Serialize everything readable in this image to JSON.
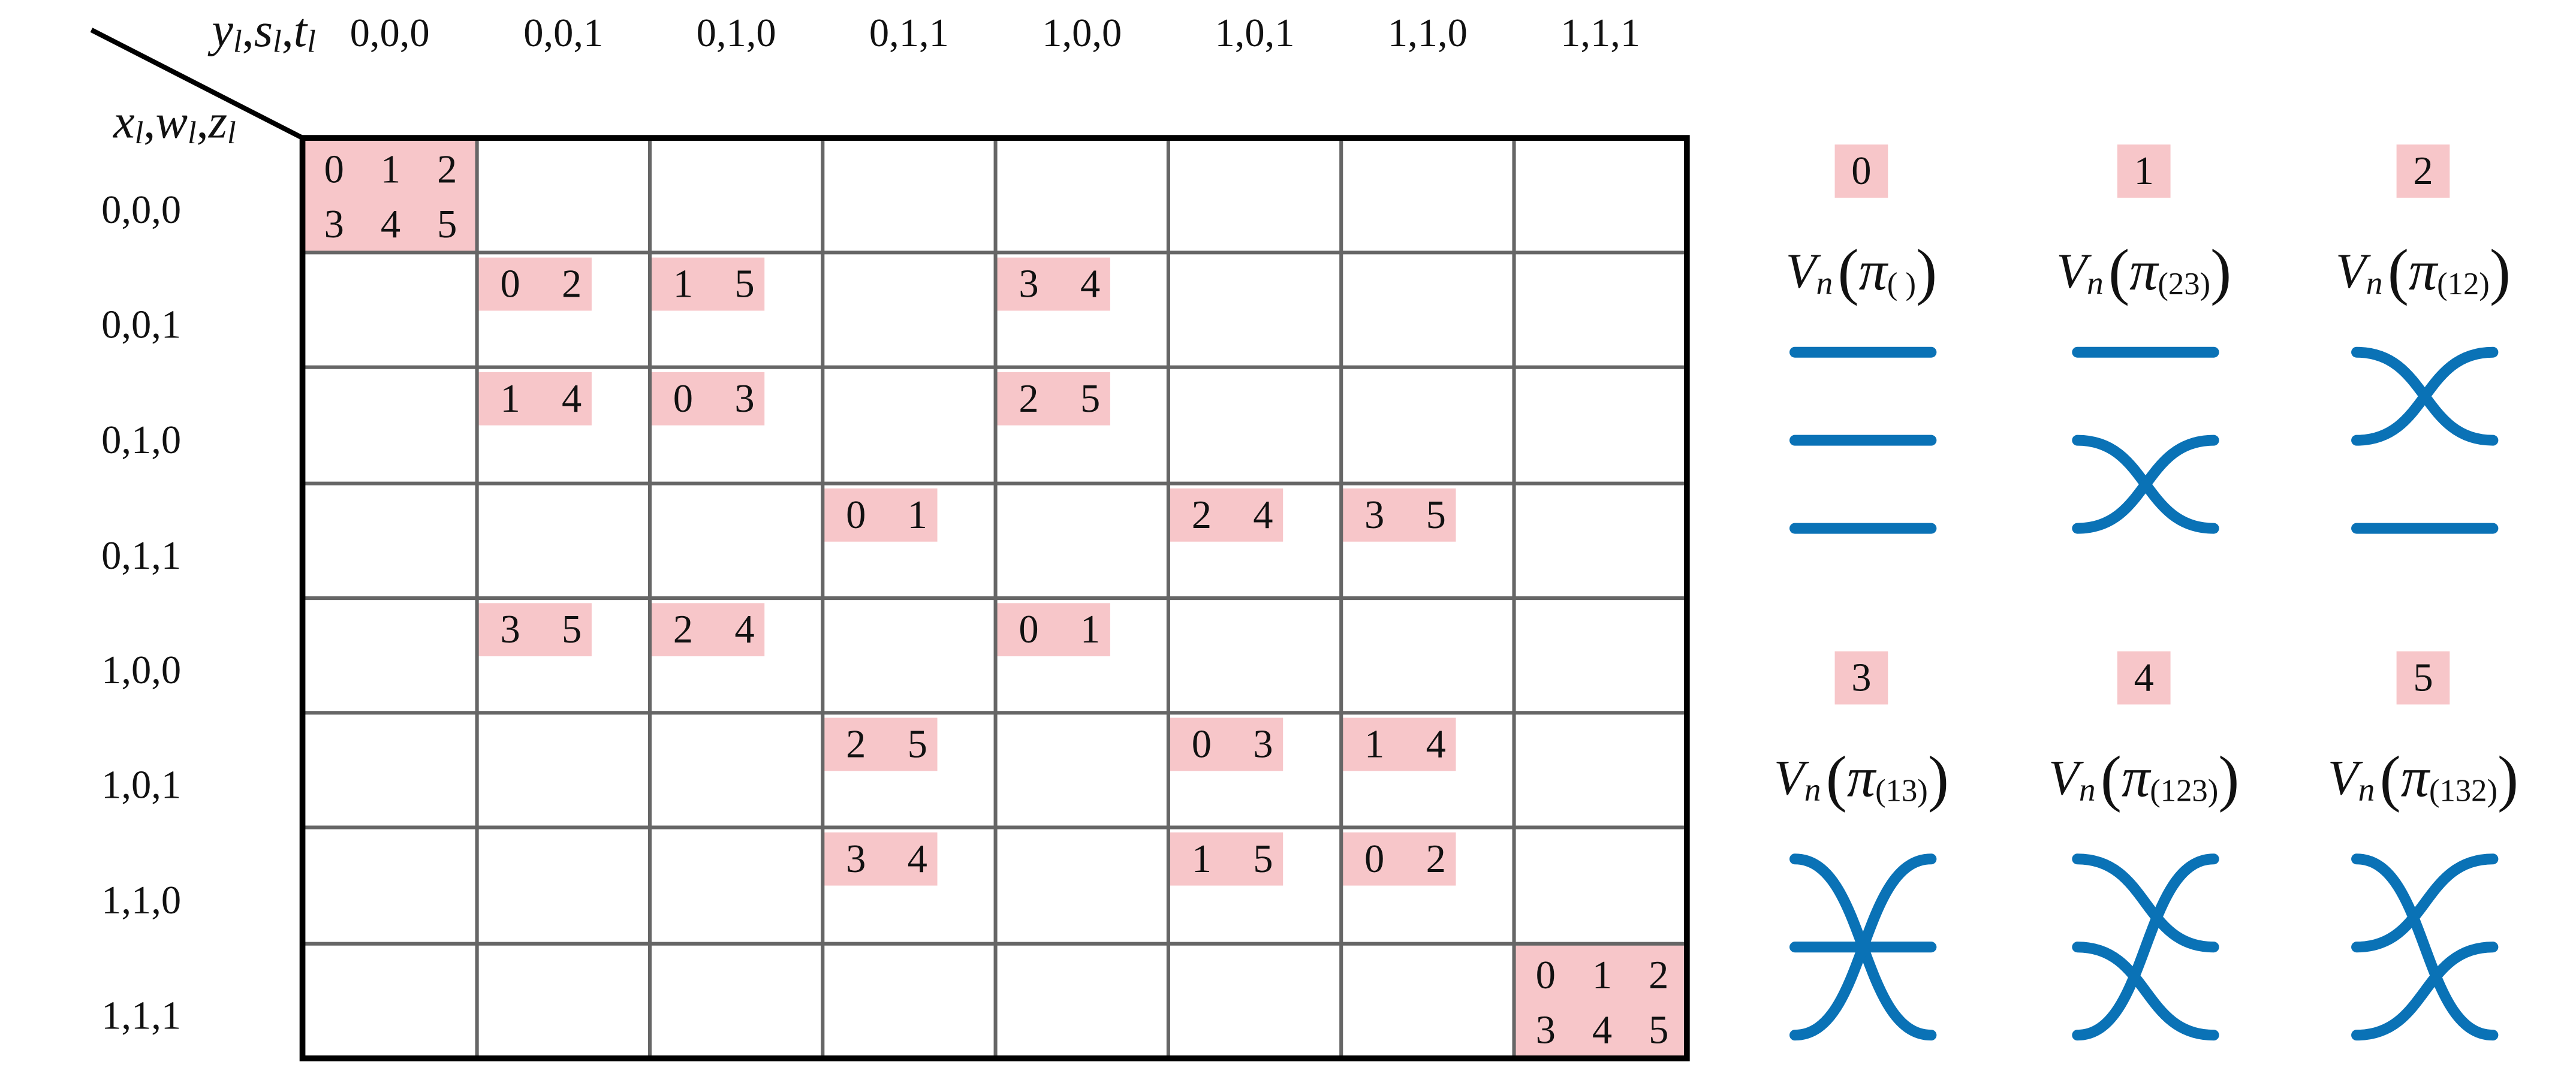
{
  "header": {
    "separator": ",",
    "column_variables": [
      {
        "name": "y",
        "sub": "l"
      },
      {
        "name": "s",
        "sub": "l"
      },
      {
        "name": "t",
        "sub": "l"
      }
    ],
    "row_variables": [
      {
        "name": "x",
        "sub": "l"
      },
      {
        "name": "w",
        "sub": "l"
      },
      {
        "name": "z",
        "sub": "l"
      }
    ]
  },
  "table": {
    "columns": [
      "0,0,0",
      "0,0,1",
      "0,1,0",
      "0,1,1",
      "1,0,0",
      "1,0,1",
      "1,1,0",
      "1,1,1"
    ],
    "rows": [
      "0,0,0",
      "0,0,1",
      "0,1,0",
      "0,1,1",
      "1,0,0",
      "1,0,1",
      "1,1,0",
      "1,1,1"
    ],
    "cells": [
      [
        [
          0,
          1,
          2,
          3,
          4,
          5
        ],
        [],
        [],
        [],
        [],
        [],
        [],
        []
      ],
      [
        [],
        [
          0,
          2
        ],
        [
          1,
          5
        ],
        [],
        [
          3,
          4
        ],
        [],
        [],
        []
      ],
      [
        [],
        [
          1,
          4
        ],
        [
          0,
          3
        ],
        [],
        [
          2,
          5
        ],
        [],
        [],
        []
      ],
      [
        [],
        [],
        [],
        [
          0,
          1
        ],
        [],
        [
          2,
          4
        ],
        [
          3,
          5
        ],
        []
      ],
      [
        [],
        [
          3,
          5
        ],
        [
          2,
          4
        ],
        [],
        [
          0,
          1
        ],
        [],
        [],
        []
      ],
      [
        [],
        [],
        [],
        [
          2,
          5
        ],
        [],
        [
          0,
          3
        ],
        [
          1,
          4
        ],
        []
      ],
      [
        [],
        [],
        [],
        [
          3,
          4
        ],
        [],
        [
          1,
          5
        ],
        [
          0,
          2
        ],
        []
      ],
      [
        [],
        [],
        [],
        [],
        [],
        [],
        [],
        [
          0,
          1,
          2,
          3,
          4,
          5
        ]
      ]
    ]
  },
  "permutations": {
    "operator": "V",
    "operator_sub": "n",
    "symbol": "π",
    "open": "(",
    "close": ")",
    "items": [
      {
        "index": 0,
        "subscript": "( )"
      },
      {
        "index": 1,
        "subscript": "(23)"
      },
      {
        "index": 2,
        "subscript": "(12)"
      },
      {
        "index": 3,
        "subscript": "(13)"
      },
      {
        "index": 4,
        "subscript": "(123)"
      },
      {
        "index": 5,
        "subscript": "(132)"
      }
    ]
  }
}
